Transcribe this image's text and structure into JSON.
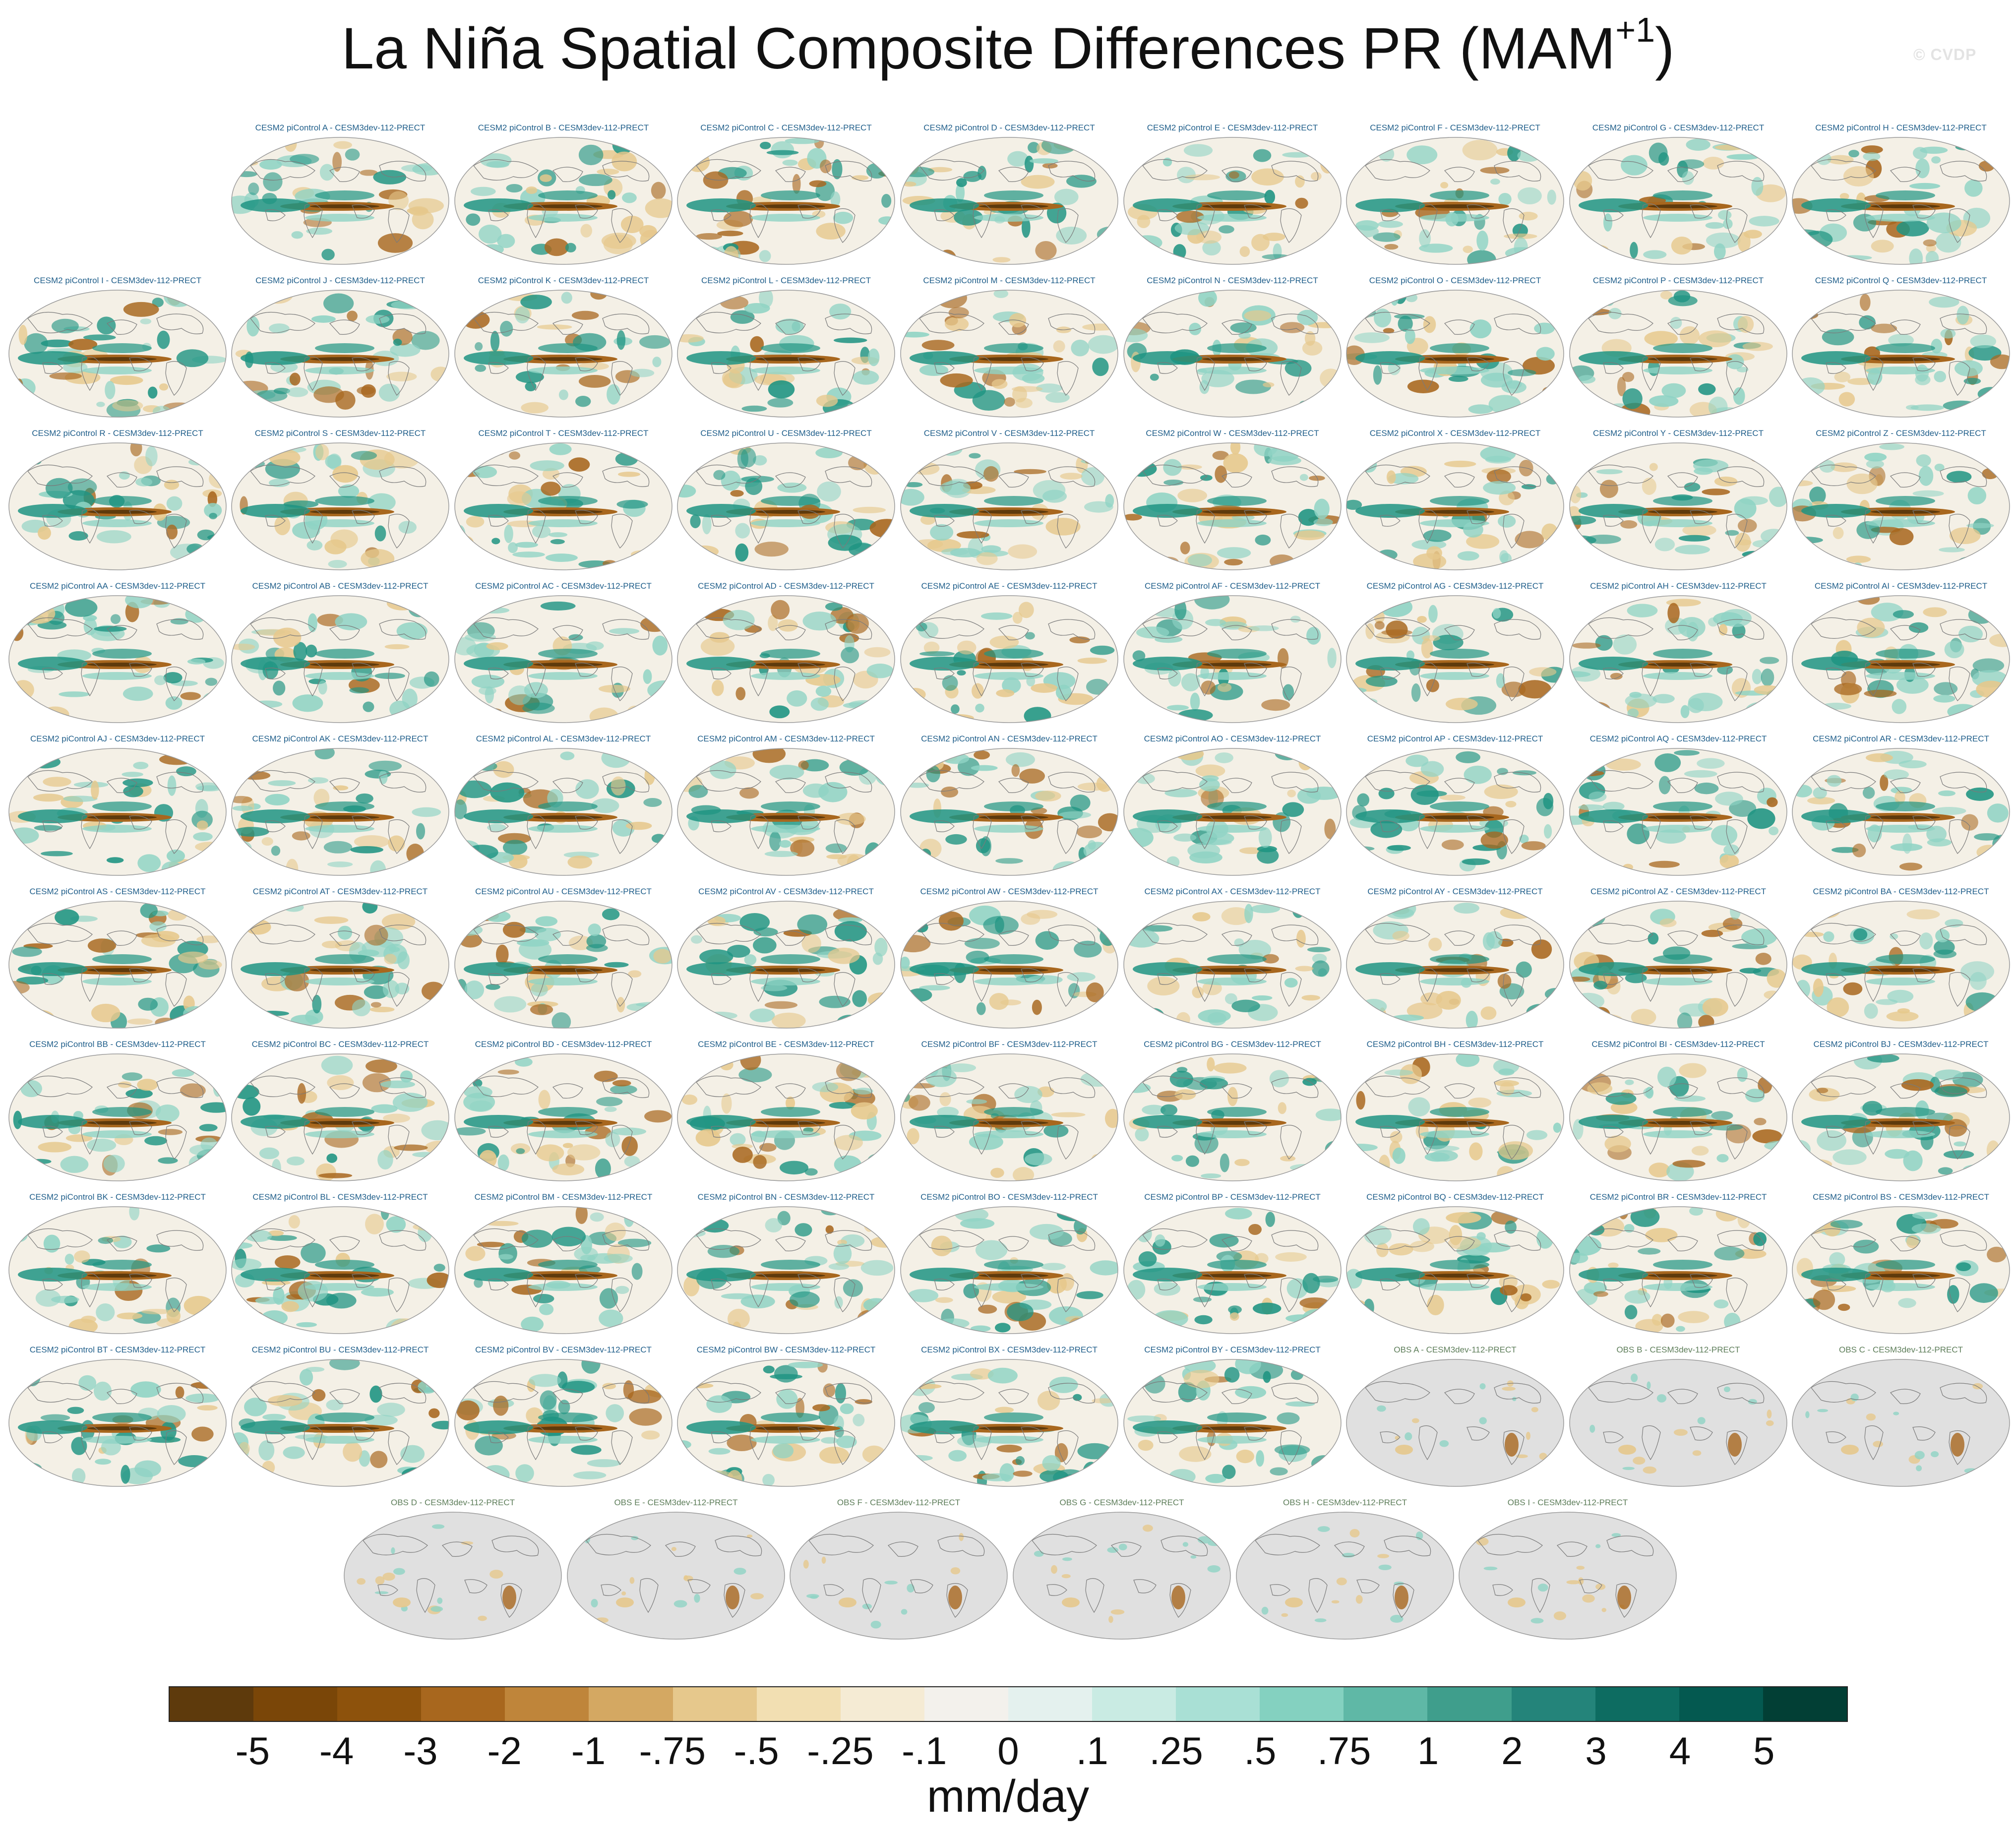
{
  "title": {
    "main": "La Niña Spatial Composite Differences PR (MAM",
    "superscript": "+1",
    "close": ")"
  },
  "credit": "© CVDP",
  "units": "mm/day",
  "colorbar": {
    "colors": [
      "#5e3a0c",
      "#7a4608",
      "#8d520c",
      "#a8671e",
      "#bf853a",
      "#d4a862",
      "#e6c88c",
      "#f2dfb2",
      "#f5ebd4",
      "#f3f1ec",
      "#e4f1ee",
      "#c9ebe3",
      "#a9e0d5",
      "#84d1c0",
      "#5fb8a6",
      "#3f9e8c",
      "#24847a",
      "#0d6c61",
      "#045950",
      "#023f35"
    ],
    "labels": [
      "-5",
      "-4",
      "-3",
      "-2",
      "-1",
      "-.75",
      "-.5",
      "-.25",
      "-.1",
      "0",
      ".1",
      ".25",
      ".5",
      ".75",
      "1",
      "2",
      "3",
      "4",
      "5"
    ]
  },
  "map_colors": {
    "ocean_bg": "#f4f0e6",
    "wet": "#1f9482",
    "wet_light": "#8fd3c4",
    "dry": "#a8671e",
    "dry_light": "#e6c88c",
    "coast": "#7a7a7a",
    "obs_bg": "#e0e0e0",
    "obs_title": "#5e7e5a",
    "model_title": "#1f5e8a"
  },
  "panels": [
    {
      "title": "CESM2 piControl A - CESM3dev-112-PRECT",
      "kind": "model"
    },
    {
      "title": "CESM2 piControl B - CESM3dev-112-PRECT",
      "kind": "model"
    },
    {
      "title": "CESM2 piControl C - CESM3dev-112-PRECT",
      "kind": "model"
    },
    {
      "title": "CESM2 piControl D - CESM3dev-112-PRECT",
      "kind": "model"
    },
    {
      "title": "CESM2 piControl E - CESM3dev-112-PRECT",
      "kind": "model"
    },
    {
      "title": "CESM2 piControl F - CESM3dev-112-PRECT",
      "kind": "model"
    },
    {
      "title": "CESM2 piControl G - CESM3dev-112-PRECT",
      "kind": "model"
    },
    {
      "title": "CESM2 piControl H - CESM3dev-112-PRECT",
      "kind": "model"
    },
    {
      "title": "CESM2 piControl I - CESM3dev-112-PRECT",
      "kind": "model"
    },
    {
      "title": "CESM2 piControl J - CESM3dev-112-PRECT",
      "kind": "model"
    },
    {
      "title": "CESM2 piControl K - CESM3dev-112-PRECT",
      "kind": "model"
    },
    {
      "title": "CESM2 piControl L - CESM3dev-112-PRECT",
      "kind": "model"
    },
    {
      "title": "CESM2 piControl M - CESM3dev-112-PRECT",
      "kind": "model"
    },
    {
      "title": "CESM2 piControl N - CESM3dev-112-PRECT",
      "kind": "model"
    },
    {
      "title": "CESM2 piControl O - CESM3dev-112-PRECT",
      "kind": "model"
    },
    {
      "title": "CESM2 piControl P - CESM3dev-112-PRECT",
      "kind": "model"
    },
    {
      "title": "CESM2 piControl Q - CESM3dev-112-PRECT",
      "kind": "model"
    },
    {
      "title": "CESM2 piControl R - CESM3dev-112-PRECT",
      "kind": "model"
    },
    {
      "title": "CESM2 piControl S - CESM3dev-112-PRECT",
      "kind": "model"
    },
    {
      "title": "CESM2 piControl T - CESM3dev-112-PRECT",
      "kind": "model"
    },
    {
      "title": "CESM2 piControl U - CESM3dev-112-PRECT",
      "kind": "model"
    },
    {
      "title": "CESM2 piControl V - CESM3dev-112-PRECT",
      "kind": "model"
    },
    {
      "title": "CESM2 piControl W - CESM3dev-112-PRECT",
      "kind": "model"
    },
    {
      "title": "CESM2 piControl X - CESM3dev-112-PRECT",
      "kind": "model"
    },
    {
      "title": "CESM2 piControl Y - CESM3dev-112-PRECT",
      "kind": "model"
    },
    {
      "title": "CESM2 piControl Z - CESM3dev-112-PRECT",
      "kind": "model"
    },
    {
      "title": "CESM2 piControl AA - CESM3dev-112-PRECT",
      "kind": "model"
    },
    {
      "title": "CESM2 piControl AB - CESM3dev-112-PRECT",
      "kind": "model"
    },
    {
      "title": "CESM2 piControl AC - CESM3dev-112-PRECT",
      "kind": "model"
    },
    {
      "title": "CESM2 piControl AD - CESM3dev-112-PRECT",
      "kind": "model"
    },
    {
      "title": "CESM2 piControl AE - CESM3dev-112-PRECT",
      "kind": "model"
    },
    {
      "title": "CESM2 piControl AF - CESM3dev-112-PRECT",
      "kind": "model"
    },
    {
      "title": "CESM2 piControl AG - CESM3dev-112-PRECT",
      "kind": "model"
    },
    {
      "title": "CESM2 piControl AH - CESM3dev-112-PRECT",
      "kind": "model"
    },
    {
      "title": "CESM2 piControl AI - CESM3dev-112-PRECT",
      "kind": "model"
    },
    {
      "title": "CESM2 piControl AJ - CESM3dev-112-PRECT",
      "kind": "model"
    },
    {
      "title": "CESM2 piControl AK - CESM3dev-112-PRECT",
      "kind": "model"
    },
    {
      "title": "CESM2 piControl AL - CESM3dev-112-PRECT",
      "kind": "model"
    },
    {
      "title": "CESM2 piControl AM - CESM3dev-112-PRECT",
      "kind": "model"
    },
    {
      "title": "CESM2 piControl AN - CESM3dev-112-PRECT",
      "kind": "model"
    },
    {
      "title": "CESM2 piControl AO - CESM3dev-112-PRECT",
      "kind": "model"
    },
    {
      "title": "CESM2 piControl AP - CESM3dev-112-PRECT",
      "kind": "model"
    },
    {
      "title": "CESM2 piControl AQ - CESM3dev-112-PRECT",
      "kind": "model"
    },
    {
      "title": "CESM2 piControl AR - CESM3dev-112-PRECT",
      "kind": "model"
    },
    {
      "title": "CESM2 piControl AS - CESM3dev-112-PRECT",
      "kind": "model"
    },
    {
      "title": "CESM2 piControl AT - CESM3dev-112-PRECT",
      "kind": "model"
    },
    {
      "title": "CESM2 piControl AU - CESM3dev-112-PRECT",
      "kind": "model"
    },
    {
      "title": "CESM2 piControl AV - CESM3dev-112-PRECT",
      "kind": "model"
    },
    {
      "title": "CESM2 piControl AW - CESM3dev-112-PRECT",
      "kind": "model"
    },
    {
      "title": "CESM2 piControl AX - CESM3dev-112-PRECT",
      "kind": "model"
    },
    {
      "title": "CESM2 piControl AY - CESM3dev-112-PRECT",
      "kind": "model"
    },
    {
      "title": "CESM2 piControl AZ - CESM3dev-112-PRECT",
      "kind": "model"
    },
    {
      "title": "CESM2 piControl BA - CESM3dev-112-PRECT",
      "kind": "model"
    },
    {
      "title": "CESM2 piControl BB - CESM3dev-112-PRECT",
      "kind": "model"
    },
    {
      "title": "CESM2 piControl BC - CESM3dev-112-PRECT",
      "kind": "model"
    },
    {
      "title": "CESM2 piControl BD - CESM3dev-112-PRECT",
      "kind": "model"
    },
    {
      "title": "CESM2 piControl BE - CESM3dev-112-PRECT",
      "kind": "model"
    },
    {
      "title": "CESM2 piControl BF - CESM3dev-112-PRECT",
      "kind": "model"
    },
    {
      "title": "CESM2 piControl BG - CESM3dev-112-PRECT",
      "kind": "model"
    },
    {
      "title": "CESM2 piControl BH - CESM3dev-112-PRECT",
      "kind": "model"
    },
    {
      "title": "CESM2 piControl BI - CESM3dev-112-PRECT",
      "kind": "model"
    },
    {
      "title": "CESM2 piControl BJ - CESM3dev-112-PRECT",
      "kind": "model"
    },
    {
      "title": "CESM2 piControl BK - CESM3dev-112-PRECT",
      "kind": "model"
    },
    {
      "title": "CESM2 piControl BL - CESM3dev-112-PRECT",
      "kind": "model"
    },
    {
      "title": "CESM2 piControl BM - CESM3dev-112-PRECT",
      "kind": "model"
    },
    {
      "title": "CESM2 piControl BN - CESM3dev-112-PRECT",
      "kind": "model"
    },
    {
      "title": "CESM2 piControl BO - CESM3dev-112-PRECT",
      "kind": "model"
    },
    {
      "title": "CESM2 piControl BP - CESM3dev-112-PRECT",
      "kind": "model"
    },
    {
      "title": "CESM2 piControl BQ - CESM3dev-112-PRECT",
      "kind": "model"
    },
    {
      "title": "CESM2 piControl BR - CESM3dev-112-PRECT",
      "kind": "model"
    },
    {
      "title": "CESM2 piControl BS - CESM3dev-112-PRECT",
      "kind": "model"
    },
    {
      "title": "CESM2 piControl BT - CESM3dev-112-PRECT",
      "kind": "model"
    },
    {
      "title": "CESM2 piControl BU - CESM3dev-112-PRECT",
      "kind": "model"
    },
    {
      "title": "CESM2 piControl BV - CESM3dev-112-PRECT",
      "kind": "model"
    },
    {
      "title": "CESM2 piControl BW - CESM3dev-112-PRECT",
      "kind": "model"
    },
    {
      "title": "CESM2 piControl BX - CESM3dev-112-PRECT",
      "kind": "model"
    },
    {
      "title": "CESM2 piControl BY - CESM3dev-112-PRECT",
      "kind": "model"
    },
    {
      "title": "OBS A - CESM3dev-112-PRECT",
      "kind": "obs"
    },
    {
      "title": "OBS B - CESM3dev-112-PRECT",
      "kind": "obs"
    },
    {
      "title": "OBS C - CESM3dev-112-PRECT",
      "kind": "obs"
    },
    {
      "title": "OBS D - CESM3dev-112-PRECT",
      "kind": "obs"
    },
    {
      "title": "OBS E - CESM3dev-112-PRECT",
      "kind": "obs"
    },
    {
      "title": "OBS F - CESM3dev-112-PRECT",
      "kind": "obs"
    },
    {
      "title": "OBS G - CESM3dev-112-PRECT",
      "kind": "obs"
    },
    {
      "title": "OBS H - CESM3dev-112-PRECT",
      "kind": "obs"
    },
    {
      "title": "OBS I - CESM3dev-112-PRECT",
      "kind": "obs"
    }
  ]
}
